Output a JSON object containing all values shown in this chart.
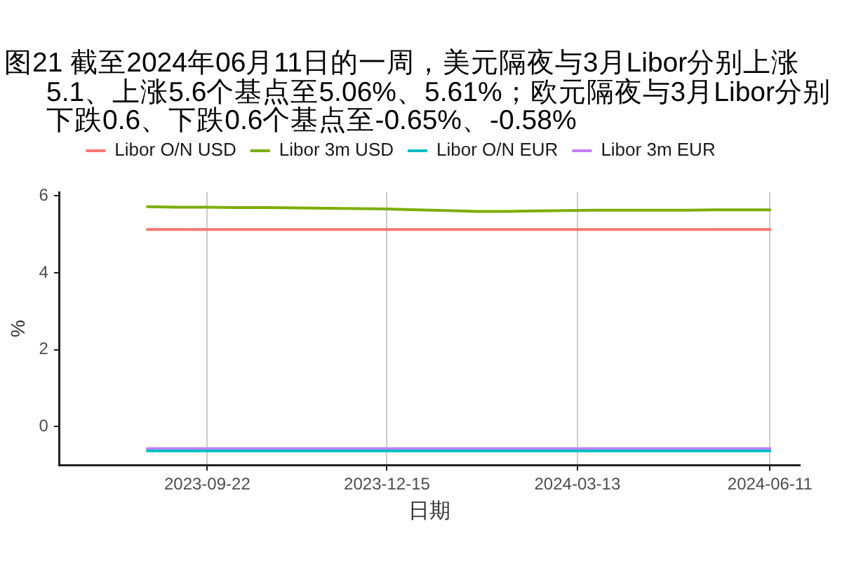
{
  "chart_data": {
    "type": "line",
    "title": "图21 截至2024年06月11日的一周，美元隔夜与3月Libor分别上涨5.1、上涨5.6个基点至5.06%、5.61%；欧元隔夜与3月Libor分别下跌0.6、下跌0.6个基点至-0.65%、-0.58%",
    "xlabel": "日期",
    "ylabel": "%",
    "x": [
      "2023-08-25",
      "2023-09-08",
      "2023-09-22",
      "2023-10-06",
      "2023-10-20",
      "2023-11-03",
      "2023-11-17",
      "2023-12-01",
      "2023-12-15",
      "2023-12-29",
      "2024-01-12",
      "2024-01-26",
      "2024-02-09",
      "2024-02-23",
      "2024-03-08",
      "2024-03-22",
      "2024-04-05",
      "2024-04-19",
      "2024-05-03",
      "2024-05-17",
      "2024-05-31",
      "2024-06-11"
    ],
    "series": [
      {
        "name": "Libor O/N USD",
        "color": "#f8766d",
        "values": [
          5.13,
          5.13,
          5.13,
          5.13,
          5.13,
          5.13,
          5.13,
          5.13,
          5.13,
          5.13,
          5.13,
          5.13,
          5.13,
          5.13,
          5.13,
          5.13,
          5.13,
          5.13,
          5.13,
          5.13,
          5.13,
          5.13
        ]
      },
      {
        "name": "Libor 3m USD",
        "color": "#7cae00",
        "values": [
          5.72,
          5.71,
          5.71,
          5.7,
          5.7,
          5.69,
          5.68,
          5.67,
          5.66,
          5.64,
          5.62,
          5.6,
          5.6,
          5.61,
          5.62,
          5.63,
          5.63,
          5.63,
          5.63,
          5.64,
          5.64,
          5.64
        ]
      },
      {
        "name": "Libor O/N EUR",
        "color": "#00bfc4",
        "values": [
          -0.63,
          -0.63,
          -0.63,
          -0.63,
          -0.63,
          -0.63,
          -0.63,
          -0.63,
          -0.63,
          -0.63,
          -0.63,
          -0.63,
          -0.63,
          -0.63,
          -0.63,
          -0.63,
          -0.63,
          -0.63,
          -0.63,
          -0.63,
          -0.63,
          -0.63
        ]
      },
      {
        "name": "Libor 3m EUR",
        "color": "#c77cff",
        "values": [
          -0.57,
          -0.57,
          -0.57,
          -0.57,
          -0.57,
          -0.57,
          -0.57,
          -0.57,
          -0.57,
          -0.57,
          -0.57,
          -0.57,
          -0.57,
          -0.57,
          -0.57,
          -0.57,
          -0.57,
          -0.57,
          -0.57,
          -0.57,
          -0.57,
          -0.57
        ]
      }
    ],
    "xlim": [
      "2023-07-15",
      "2024-06-25"
    ],
    "xticks": [
      "2023-09-22",
      "2023-12-15",
      "2024-03-13",
      "2024-06-11"
    ],
    "ylim": [
      -1,
      6.1
    ],
    "yticks": [
      0,
      2,
      4,
      6
    ],
    "grid": "x",
    "legend": "top",
    "marker": "none",
    "line_style": "solid"
  }
}
